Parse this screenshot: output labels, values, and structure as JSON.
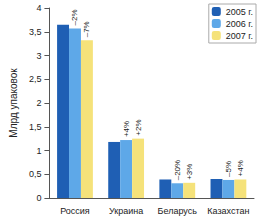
{
  "chart_data": {
    "type": "bar",
    "y_label": "Млрд упаковок",
    "categories": [
      "Россия",
      "Украина",
      "Беларусь",
      "Казахстан"
    ],
    "series": [
      {
        "name": "2005 г.",
        "color": "#1f5fb4",
        "values": [
          3.65,
          1.18,
          0.39,
          0.4
        ]
      },
      {
        "name": "2006 г.",
        "color": "#5ea8e8",
        "values": [
          3.57,
          1.22,
          0.31,
          0.38
        ],
        "annotations": [
          "–2%",
          "+4%",
          "–20%",
          "–5%"
        ]
      },
      {
        "name": "2007 г.",
        "color": "#f5e27a",
        "values": [
          3.32,
          1.25,
          0.32,
          0.39
        ],
        "annotations": [
          "–7%",
          "+2%",
          "+3%",
          "+4%"
        ]
      }
    ],
    "ylim": [
      0,
      4
    ],
    "yticks": [
      0,
      {
        "value": 0.5,
        "label": "0,5"
      },
      1,
      {
        "value": 1.5,
        "label": "1,5"
      },
      2,
      {
        "value": 2.5,
        "label": "2,5"
      },
      3,
      {
        "value": 3.5,
        "label": "3,5"
      },
      4
    ],
    "grid": false,
    "legend": "upper right"
  }
}
